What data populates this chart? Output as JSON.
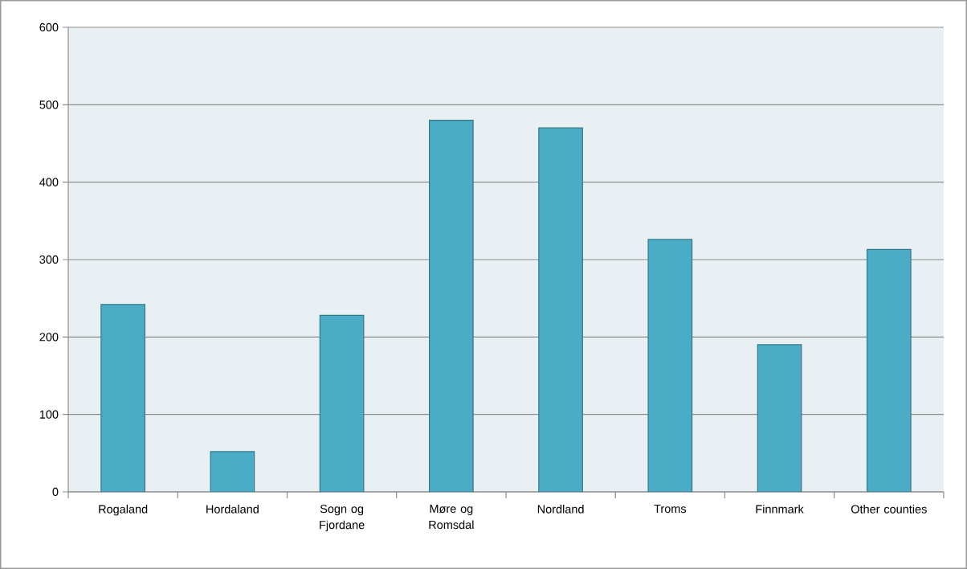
{
  "chart_data": {
    "type": "bar",
    "categories": [
      "Rogaland",
      "Hordaland",
      "Sogn og Fjordane",
      "Møre og Romsdal",
      "Nordland",
      "Troms",
      "Finnmark",
      "Other counties"
    ],
    "values": [
      242,
      52,
      228,
      480,
      470,
      326,
      190,
      313
    ],
    "color": "#4bacc6",
    "ylim": [
      0,
      600
    ],
    "yticks": [
      0,
      100,
      200,
      300,
      400,
      500,
      600
    ],
    "grid": "y"
  }
}
